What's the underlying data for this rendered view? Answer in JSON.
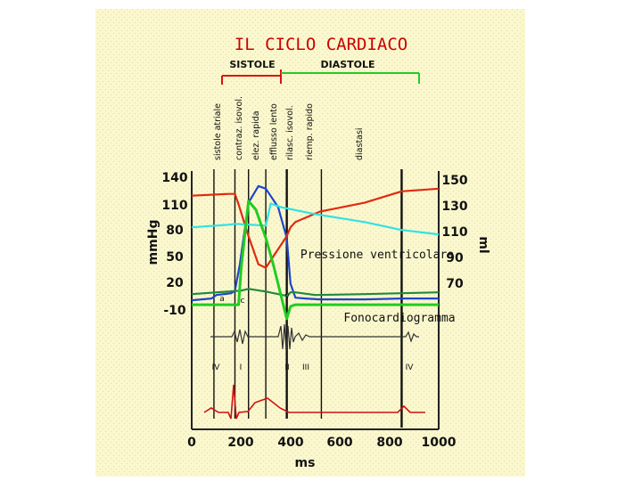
{
  "chart_data": {
    "type": "line",
    "title": "IL CICLO CARDIACO",
    "xlabel": "ms",
    "ylabel_left": "mmHg",
    "ylabel_right": "ml",
    "xlim": [
      0,
      1000
    ],
    "x_ticks": [
      "0",
      "200",
      "400",
      "600",
      "800",
      "1000"
    ],
    "y_left_ticks": [
      "140",
      "110",
      "80",
      "50",
      "20",
      "-10"
    ],
    "y_right_ticks": [
      "150",
      "130",
      "110",
      "90",
      "70"
    ],
    "phase_headers": [
      "SISTOLE",
      "DIASTOLE"
    ],
    "sub_phases": [
      "sistole atriale",
      "contraz. isovol.",
      "elez. rapida",
      "efflusso lento",
      "rilasc. isovol.",
      "riemp. rapido",
      "diastasi"
    ],
    "annotations": [
      "Pressione ventricolare",
      "Fonocardiogramma"
    ],
    "wave_labels": [
      "a",
      "c",
      "v"
    ],
    "heart_sounds": [
      "IV",
      "I",
      "II",
      "III",
      "IV"
    ],
    "phase_boundaries_ms": [
      90,
      175,
      230,
      300,
      385,
      525
    ],
    "series": [
      {
        "name": "",
        "color": "#1e46c8",
        "x": [
          0,
          80,
          100,
          160,
          175,
          195,
          230,
          270,
          300,
          350,
          385,
          400,
          420,
          460,
          520,
          700,
          850,
          1000
        ],
        "y": [
          -1,
          1,
          5,
          7,
          10,
          40,
          110,
          129,
          126,
          105,
          70,
          18,
          2,
          1,
          0,
          0,
          1,
          1
        ]
      },
      {
        "name": "",
        "color": "#e02a10",
        "x": [
          0,
          150,
          175,
          190,
          230,
          270,
          300,
          385,
          400,
          420,
          520,
          700,
          850,
          1000
        ],
        "y": [
          118,
          120,
          120,
          108,
          72,
          40,
          36,
          72,
          82,
          88,
          100,
          110,
          123,
          126
        ]
      },
      {
        "name": "",
        "color": "#31e2e2",
        "x": [
          0,
          150,
          175,
          300,
          320,
          360,
          500,
          700,
          850,
          1000
        ],
        "y": [
          82,
          85,
          86,
          84,
          109,
          105,
          97,
          88,
          79,
          74
        ]
      },
      {
        "name": "",
        "color": "#1f8a3c",
        "x": [
          0,
          200,
          230,
          300,
          385,
          400,
          420,
          500,
          700,
          1000
        ],
        "y": [
          6,
          10,
          12,
          9,
          4,
          8,
          8,
          5,
          6,
          8
        ]
      },
      {
        "name": "",
        "color": "#22cc22",
        "x": [
          0,
          190,
          200,
          230,
          260,
          300,
          330,
          385,
          400,
          420,
          1000
        ],
        "y": [
          -6,
          -6,
          35,
          112,
          102,
          70,
          40,
          -22,
          -8,
          -6,
          -6
        ]
      }
    ]
  }
}
